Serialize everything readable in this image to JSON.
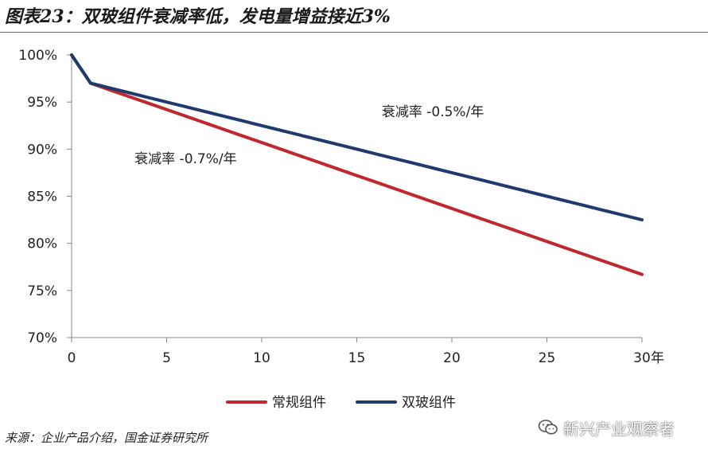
{
  "header": {
    "title": "图表23：双玻组件衰减率低，发电量增益接近3%"
  },
  "footer": {
    "source": "来源：企业产品介绍，国金证券研究所",
    "watermark": "新兴产业观察者",
    "watermark_icon": "wechat-icon"
  },
  "chart_data": {
    "type": "line",
    "title": "",
    "xlabel": "",
    "ylabel": "",
    "x_unit_label": "年",
    "xlim": [
      0,
      30
    ],
    "ylim": [
      70,
      100
    ],
    "x_ticks": [
      0,
      5,
      10,
      15,
      20,
      25,
      30
    ],
    "y_ticks": [
      70,
      75,
      80,
      85,
      90,
      95,
      100
    ],
    "y_tick_suffix": "%",
    "grid": false,
    "legend_position": "bottom",
    "series": [
      {
        "name": "常规组件",
        "color": "#c0282e",
        "x": [
          0,
          1,
          2,
          3,
          4,
          5,
          6,
          7,
          8,
          9,
          10,
          11,
          12,
          13,
          14,
          15,
          16,
          17,
          18,
          19,
          20,
          21,
          22,
          23,
          24,
          25,
          26,
          27,
          28,
          29,
          30
        ],
        "values": [
          100,
          97.0,
          96.3,
          95.6,
          94.9,
          94.2,
          93.5,
          92.8,
          92.1,
          91.4,
          90.7,
          90.0,
          89.3,
          88.6,
          87.9,
          87.2,
          86.5,
          85.8,
          85.1,
          84.4,
          83.7,
          83.0,
          82.3,
          81.6,
          80.9,
          80.2,
          79.5,
          78.8,
          78.1,
          77.4,
          76.7
        ]
      },
      {
        "name": "双玻组件",
        "color": "#1f3a6e",
        "x": [
          0,
          1,
          2,
          3,
          4,
          5,
          6,
          7,
          8,
          9,
          10,
          11,
          12,
          13,
          14,
          15,
          16,
          17,
          18,
          19,
          20,
          21,
          22,
          23,
          24,
          25,
          26,
          27,
          28,
          29,
          30
        ],
        "values": [
          100,
          97.0,
          96.5,
          96.0,
          95.5,
          95.0,
          94.5,
          94.0,
          93.5,
          93.0,
          92.5,
          92.0,
          91.5,
          91.0,
          90.5,
          90.0,
          89.5,
          89.0,
          88.5,
          88.0,
          87.5,
          87.0,
          86.5,
          86.0,
          85.5,
          85.0,
          84.5,
          84.0,
          83.5,
          83.0,
          82.5
        ]
      }
    ],
    "annotations": [
      {
        "text": "衰减率 -0.5%/年",
        "x": 19.0,
        "y": 94.0
      },
      {
        "text": "衰减率 -0.7%/年",
        "x": 6.0,
        "y": 89.0
      }
    ]
  }
}
